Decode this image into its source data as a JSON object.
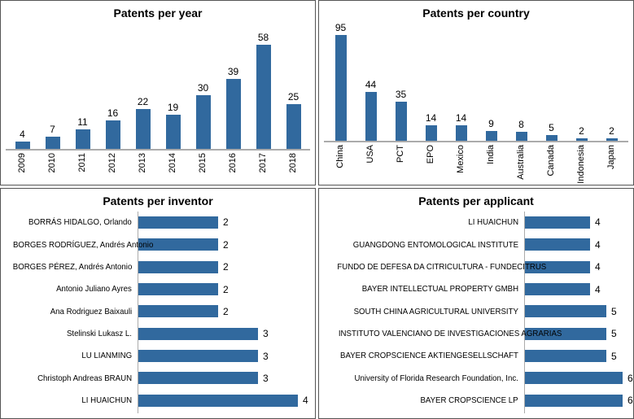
{
  "colors": {
    "bar": "#31699E",
    "axis": "#ABABAB",
    "panel_border": "#555555",
    "text": "#000000"
  },
  "chart_data": [
    {
      "type": "bar",
      "orientation": "vertical",
      "title": "Patents per year",
      "xlabel": "",
      "ylabel": "",
      "grid": false,
      "legend": "none",
      "categories": [
        "2009",
        "2010",
        "2011",
        "2012",
        "2013",
        "2014",
        "2015",
        "2016",
        "2017",
        "2018"
      ],
      "values": [
        4,
        7,
        11,
        16,
        22,
        19,
        30,
        39,
        58,
        25
      ],
      "ylim": [
        0,
        58
      ]
    },
    {
      "type": "bar",
      "orientation": "vertical",
      "title": "Patents per country",
      "xlabel": "",
      "ylabel": "",
      "grid": false,
      "legend": "none",
      "categories": [
        "China",
        "USA",
        "PCT",
        "EPO",
        "Mexico",
        "India",
        "Australia",
        "Canada",
        "Indonesia",
        "Japan"
      ],
      "values": [
        95,
        44,
        35,
        14,
        14,
        9,
        8,
        5,
        2,
        2
      ],
      "ylim": [
        0,
        95
      ]
    },
    {
      "type": "bar",
      "orientation": "horizontal",
      "title": "Patents per inventor",
      "xlabel": "",
      "ylabel": "",
      "grid": false,
      "legend": "none",
      "categories": [
        "BORRÁS HIDALGO, Orlando",
        "BORGES RODRÍGUEZ, Andrés Antonio",
        "BORGES PÉREZ, Andrés Antonio",
        "Antonio Juliano Ayres",
        "Ana Rodriguez Baixauli",
        "Stelinski Lukasz L.",
        "LU LIANMING",
        "Christoph Andreas BRAUN",
        "LI HUAICHUN"
      ],
      "values": [
        2,
        2,
        2,
        2,
        2,
        3,
        3,
        3,
        4
      ],
      "xlim": [
        0,
        4
      ]
    },
    {
      "type": "bar",
      "orientation": "horizontal",
      "title": "Patents per applicant",
      "xlabel": "",
      "ylabel": "",
      "grid": false,
      "legend": "none",
      "categories": [
        "LI HUAICHUN",
        "GUANGDONG ENTOMOLOGICAL INSTITUTE",
        "FUNDO DE DEFESA DA CITRICULTURA - FUNDECITRUS",
        "BAYER INTELLECTUAL PROPERTY GMBH",
        "SOUTH CHINA AGRICULTURAL UNIVERSITY",
        "INSTITUTO VALENCIANO DE INVESTIGACIONES AGRARIAS",
        "BAYER CROPSCIENCE AKTIENGESELLSCHAFT",
        "University of Florida Research Foundation, Inc.",
        "BAYER CROPSCIENCE LP"
      ],
      "values": [
        4,
        4,
        4,
        4,
        5,
        5,
        5,
        6,
        6
      ],
      "xlim": [
        0,
        6
      ]
    }
  ]
}
